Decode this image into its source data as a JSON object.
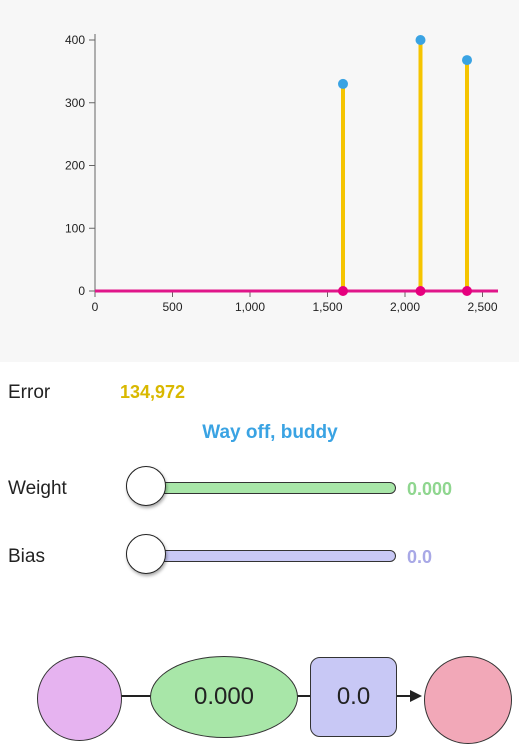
{
  "chart_data": {
    "type": "scatter",
    "xlim": [
      0,
      2600
    ],
    "ylim": [
      0,
      400
    ],
    "x_ticks": [
      0,
      500,
      1000,
      1500,
      2000,
      2500
    ],
    "x_tick_labels": [
      "0",
      "500",
      "1,000",
      "1,500",
      "2,000",
      "2,500"
    ],
    "y_ticks": [
      0,
      100,
      200,
      300,
      400
    ],
    "y_tick_labels": [
      "0",
      "100",
      "200",
      "300",
      "400"
    ],
    "points": [
      {
        "x": 1600,
        "y": 330
      },
      {
        "x": 2100,
        "y": 400
      },
      {
        "x": 2400,
        "y": 368
      }
    ],
    "prediction_line": {
      "weight": 0.0,
      "bias": 0.0
    },
    "grid": false,
    "colors": {
      "actual_point": "#3aa3e3",
      "predicted_point": "#e6007e",
      "error_stem": "#f5c400",
      "prediction_line": "#e0168a"
    }
  },
  "error": {
    "label": "Error",
    "value": "134,972",
    "color": "#d9b800"
  },
  "feedback": {
    "text": "Way off, buddy",
    "color": "#3aa3e3"
  },
  "weight": {
    "label": "Weight",
    "value": "0.000",
    "fraction": 0.0,
    "color": "#8fd68f",
    "fill": "#a8e6a8"
  },
  "bias": {
    "label": "Bias",
    "value": "0.0",
    "fraction": 0.0,
    "color": "#a8a8e6",
    "fill": "#c8c8f5"
  },
  "diagram": {
    "input_node_color": "#e6b3f0",
    "weight_node_text": "0.000",
    "weight_node_color": "#a8e6a8",
    "bias_node_text": "0.0",
    "bias_node_color": "#c8c8f5",
    "output_node_color": "#f2a8b8"
  }
}
